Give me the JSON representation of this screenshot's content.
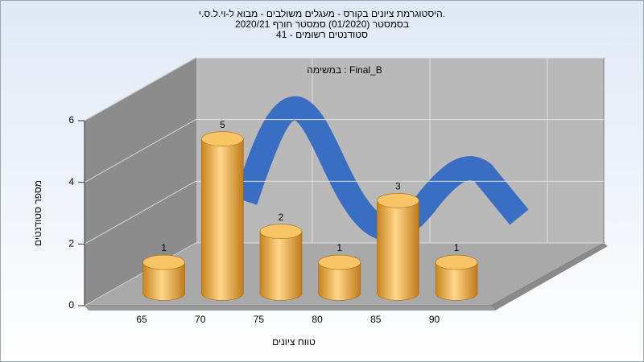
{
  "chart_data": {
    "type": "bar",
    "title": [
      "היסטוגרמת ציונים בקורס - מעגלים משולבים - מבוא ל-וי.ל.ס.י.",
      "בסמסטר  (01/2020)  סמסטר חורף 2020/21",
      "סטודנטים רשומים - 41"
    ],
    "annotation": "במשימה : Final_B",
    "x_label": "טווח ציונים",
    "y_label": "מספר סטודנטים",
    "categories": [
      "65",
      "70",
      "75",
      "80",
      "85",
      "90"
    ],
    "values": [
      1,
      5,
      2,
      1,
      3,
      1
    ],
    "color": "#f0b04a",
    "ylim": [
      0,
      6
    ],
    "yticks": [
      0,
      2,
      4,
      6
    ],
    "grid": true
  }
}
